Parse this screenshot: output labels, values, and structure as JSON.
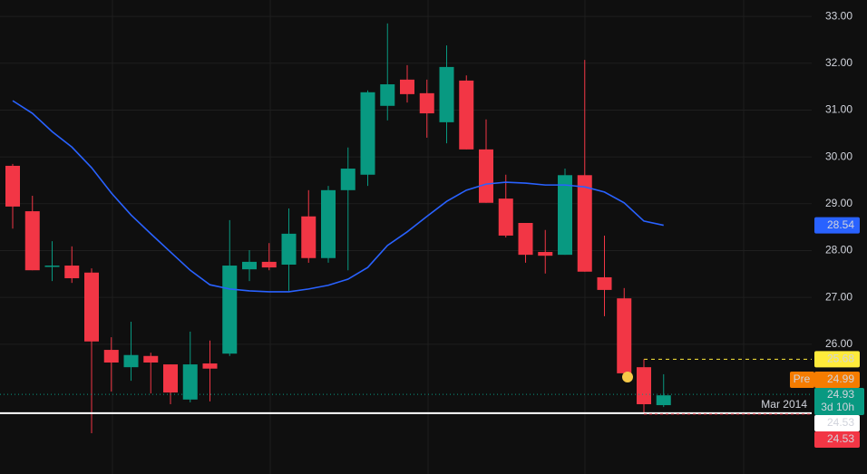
{
  "chart_data": {
    "type": "candlestick",
    "ylim": [
      23.23,
      33.35
    ],
    "yticks": [
      {
        "value": 26,
        "label": "26.00"
      },
      {
        "value": 27,
        "label": "27.00"
      },
      {
        "value": 28,
        "label": "28.00"
      },
      {
        "value": 29,
        "label": "29.00"
      },
      {
        "value": 30,
        "label": "30.00"
      },
      {
        "value": 31,
        "label": "31.00"
      },
      {
        "value": 32,
        "label": "32.00"
      },
      {
        "value": 33,
        "label": "33.00"
      }
    ],
    "grid": true,
    "up_color": "#089981",
    "down_color": "#f23645",
    "open": [
      29.81,
      28.84,
      27.66,
      27.68,
      27.53,
      25.88,
      25.51,
      25.75,
      25.57,
      24.82,
      25.59,
      25.8,
      27.6,
      27.76,
      27.7,
      28.73,
      27.84,
      29.29,
      29.62,
      31.09,
      31.65,
      31.36,
      30.74,
      31.63,
      30.16,
      29.11,
      28.59,
      27.97,
      27.91,
      29.61,
      27.43,
      26.98,
      25.51,
      24.7
    ],
    "high": [
      29.85,
      29.17,
      28.2,
      28.09,
      27.62,
      26.15,
      26.48,
      25.82,
      25.57,
      26.27,
      26.08,
      28.65,
      28.01,
      28.16,
      28.9,
      29.29,
      29.38,
      30.2,
      31.42,
      32.85,
      31.96,
      31.65,
      32.38,
      31.74,
      30.8,
      29.62,
      28.59,
      28.44,
      29.75,
      32.07,
      28.32,
      27.2,
      25.65,
      25.36
    ],
    "low": [
      28.47,
      27.58,
      27.35,
      27.31,
      24.1,
      24.99,
      25.22,
      24.95,
      24.72,
      24.76,
      24.78,
      25.75,
      27.35,
      27.58,
      27.14,
      27.74,
      27.74,
      27.58,
      29.38,
      30.78,
      31.16,
      30.41,
      30.29,
      30.16,
      29.02,
      28.28,
      27.74,
      27.51,
      27.91,
      27.55,
      26.6,
      25.38,
      24.51,
      24.66
    ],
    "close": [
      28.94,
      27.58,
      27.68,
      27.41,
      26.06,
      25.61,
      25.77,
      25.61,
      24.97,
      25.57,
      25.48,
      27.68,
      27.76,
      27.64,
      28.36,
      27.84,
      29.29,
      29.75,
      31.38,
      31.55,
      31.34,
      30.93,
      31.92,
      30.16,
      29.02,
      28.32,
      27.91,
      27.89,
      29.61,
      27.55,
      27.16,
      25.38,
      24.72,
      24.91
    ],
    "moving_average": {
      "color": "#2962ff",
      "values": [
        31.2,
        30.93,
        30.54,
        30.21,
        29.77,
        29.23,
        28.76,
        28.36,
        27.97,
        27.58,
        27.27,
        27.18,
        27.14,
        27.12,
        27.12,
        27.18,
        27.26,
        27.39,
        27.64,
        28.11,
        28.4,
        28.73,
        29.05,
        29.29,
        29.42,
        29.46,
        29.44,
        29.4,
        29.4,
        29.36,
        29.25,
        29.02,
        28.63,
        28.54
      ]
    },
    "price_labels": {
      "moving_average": 28.54,
      "high_line": 25.68,
      "premarket": {
        "tag": "Pre",
        "value": 24.99
      },
      "last": {
        "value": 24.93,
        "countdown": "3d 10h"
      },
      "period_line": {
        "value": 24.53,
        "tag": "Mar 2014"
      },
      "low": 24.53
    }
  }
}
